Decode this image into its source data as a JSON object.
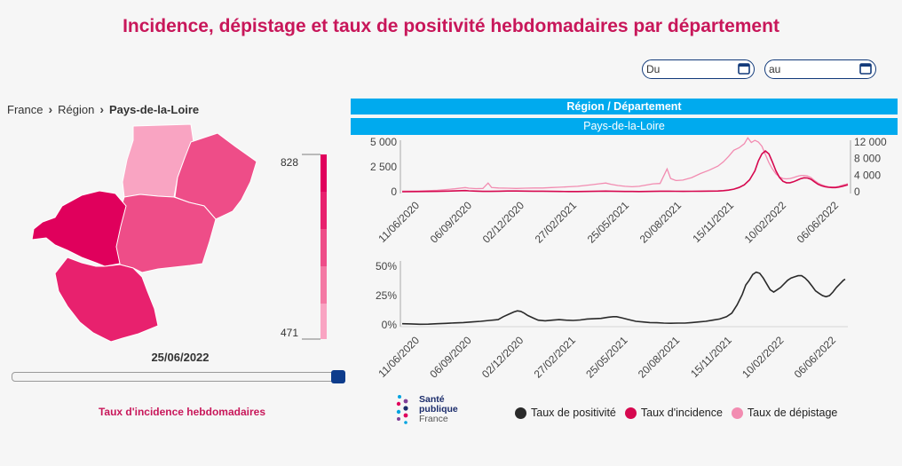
{
  "page": {
    "title": "Incidence, dépistage et taux de positivité hebdomadaires par département"
  },
  "filters": {
    "date_from_label": "Du",
    "date_to_label": "au"
  },
  "breadcrumb": {
    "items": [
      "France",
      "Région",
      "Pays-de-la-Loire"
    ]
  },
  "map": {
    "scale_max_label": "828",
    "scale_min_label": "471",
    "date_label": "25/06/2022",
    "caption": "Taux d'incidence hebdomadaires",
    "slider_position": 1.0,
    "scale_colors": [
      "#e0005c",
      "#e8216e",
      "#ee4d88",
      "#f479a4",
      "#f9a4c2"
    ],
    "department_colors": {
      "loire-atlantique": "#e0005c",
      "maine-et-loire": "#ee4d88",
      "mayenne": "#f9a4c2",
      "sarthe": "#ee4d88",
      "vendee": "#e8216e"
    }
  },
  "header": {
    "level_label": "Région / Département",
    "selected_area": "Pays-de-la-Loire"
  },
  "chart_data": [
    {
      "type": "line",
      "x_tick_labels": [
        "11/06/2020",
        "06/09/2020",
        "02/12/2020",
        "27/02/2021",
        "25/05/2021",
        "20/08/2021",
        "15/11/2021",
        "10/02/2022",
        "06/06/2022"
      ],
      "x_range": [
        "11/06/2020",
        "25/06/2022"
      ],
      "y_left_ticks": [
        "0",
        "2 500",
        "5 000"
      ],
      "y_left_range": [
        0,
        5000
      ],
      "y_right_ticks": [
        "0",
        "4 000",
        "8 000",
        "12 000"
      ],
      "y_right_range": [
        0,
        12000
      ],
      "series": [
        {
          "name": "Taux d'incidence",
          "axis": "left",
          "color": "#d6084f",
          "points": [
            [
              0,
              0
            ],
            [
              8,
              15
            ],
            [
              20,
              40
            ],
            [
              30,
              80
            ],
            [
              36,
              120
            ],
            [
              38,
              90
            ],
            [
              42,
              60
            ],
            [
              46,
              40
            ],
            [
              50,
              35
            ],
            [
              55,
              55
            ],
            [
              60,
              75
            ],
            [
              65,
              70
            ],
            [
              70,
              60
            ],
            [
              75,
              55
            ],
            [
              80,
              50
            ],
            [
              85,
              35
            ],
            [
              90,
              25
            ],
            [
              95,
              20
            ],
            [
              100,
              18
            ],
            [
              104,
              25
            ],
            [
              108,
              40
            ],
            [
              112,
              55
            ],
            [
              116,
              60
            ],
            [
              119,
              50
            ],
            [
              123,
              40
            ],
            [
              127,
              30
            ],
            [
              131,
              25
            ],
            [
              135,
              20
            ],
            [
              139,
              30
            ],
            [
              143,
              40
            ],
            [
              147,
              50
            ],
            [
              152,
              55
            ],
            [
              156,
              45
            ],
            [
              160,
              40
            ],
            [
              165,
              45
            ],
            [
              170,
              55
            ],
            [
              175,
              60
            ],
            [
              180,
              75
            ],
            [
              183,
              110
            ],
            [
              186,
              160
            ],
            [
              189,
              260
            ],
            [
              192,
              430
            ],
            [
              195,
              700
            ],
            [
              198,
              1200
            ],
            [
              201,
              2100
            ],
            [
              203,
              3100
            ],
            [
              205,
              3800
            ],
            [
              207,
              4100
            ],
            [
              209,
              3800
            ],
            [
              211,
              3000
            ],
            [
              213,
              2100
            ],
            [
              215,
              1450
            ],
            [
              217,
              1050
            ],
            [
              219,
              900
            ],
            [
              221,
              900
            ],
            [
              223,
              1000
            ],
            [
              225,
              1150
            ],
            [
              227,
              1300
            ],
            [
              229,
              1400
            ],
            [
              231,
              1380
            ],
            [
              233,
              1250
            ],
            [
              235,
              1000
            ],
            [
              237,
              750
            ],
            [
              239,
              600
            ],
            [
              241,
              500
            ],
            [
              243,
              450
            ],
            [
              245,
              420
            ],
            [
              247,
              420
            ],
            [
              249,
              470
            ],
            [
              251,
              550
            ],
            [
              253,
              650
            ],
            [
              254,
              700
            ]
          ]
        },
        {
          "name": "Taux de dépistage",
          "axis": "right",
          "color": "#f28cb1",
          "points": [
            [
              0,
              150
            ],
            [
              10,
              200
            ],
            [
              20,
              350
            ],
            [
              30,
              700
            ],
            [
              36,
              1000
            ],
            [
              38,
              850
            ],
            [
              42,
              750
            ],
            [
              46,
              800
            ],
            [
              49,
              2100
            ],
            [
              51,
              1000
            ],
            [
              55,
              900
            ],
            [
              60,
              850
            ],
            [
              65,
              800
            ],
            [
              70,
              850
            ],
            [
              75,
              900
            ],
            [
              80,
              900
            ],
            [
              85,
              1000
            ],
            [
              90,
              1100
            ],
            [
              95,
              1200
            ],
            [
              100,
              1300
            ],
            [
              104,
              1500
            ],
            [
              108,
              1700
            ],
            [
              112,
              1900
            ],
            [
              116,
              2100
            ],
            [
              119,
              1800
            ],
            [
              123,
              1500
            ],
            [
              127,
              1300
            ],
            [
              131,
              1200
            ],
            [
              135,
              1300
            ],
            [
              139,
              1600
            ],
            [
              143,
              1900
            ],
            [
              147,
              2000
            ],
            [
              151,
              5500
            ],
            [
              153,
              3200
            ],
            [
              156,
              2700
            ],
            [
              160,
              2800
            ],
            [
              165,
              3400
            ],
            [
              170,
              4400
            ],
            [
              175,
              5200
            ],
            [
              180,
              6200
            ],
            [
              183,
              7200
            ],
            [
              186,
              8500
            ],
            [
              189,
              10000
            ],
            [
              192,
              10600
            ],
            [
              195,
              11600
            ],
            [
              197,
              13000
            ],
            [
              199,
              11900
            ],
            [
              201,
              12400
            ],
            [
              203,
              12000
            ],
            [
              205,
              11000
            ],
            [
              207,
              9000
            ],
            [
              209,
              7000
            ],
            [
              211,
              5500
            ],
            [
              213,
              4300
            ],
            [
              215,
              3600
            ],
            [
              217,
              3200
            ],
            [
              219,
              3100
            ],
            [
              221,
              3200
            ],
            [
              223,
              3400
            ],
            [
              225,
              3700
            ],
            [
              227,
              3900
            ],
            [
              229,
              3950
            ],
            [
              231,
              3800
            ],
            [
              233,
              3400
            ],
            [
              235,
              2700
            ],
            [
              237,
              2100
            ],
            [
              239,
              1700
            ],
            [
              241,
              1400
            ],
            [
              243,
              1200
            ],
            [
              245,
              1150
            ],
            [
              247,
              1150
            ],
            [
              249,
              1300
            ],
            [
              251,
              1600
            ],
            [
              253,
              1800
            ],
            [
              254,
              1950
            ]
          ]
        }
      ]
    },
    {
      "type": "line",
      "x_tick_labels": [
        "11/06/2020",
        "06/09/2020",
        "02/12/2020",
        "27/02/2021",
        "25/05/2021",
        "20/08/2021",
        "15/11/2021",
        "10/02/2022",
        "06/06/2022"
      ],
      "x_range": [
        "11/06/2020",
        "25/06/2022"
      ],
      "y_ticks": [
        "0%",
        "25%",
        "50%"
      ],
      "y_range": [
        0,
        0.5
      ],
      "series": [
        {
          "name": "Taux de positivité",
          "color": "#2a2a2a",
          "points": [
            [
              0,
              0.01
            ],
            [
              5,
              0.008
            ],
            [
              10,
              0.005
            ],
            [
              15,
              0.006
            ],
            [
              20,
              0.01
            ],
            [
              25,
              0.013
            ],
            [
              30,
              0.017
            ],
            [
              35,
              0.02
            ],
            [
              40,
              0.025
            ],
            [
              45,
              0.03
            ],
            [
              50,
              0.038
            ],
            [
              55,
              0.045
            ],
            [
              58,
              0.07
            ],
            [
              61,
              0.09
            ],
            [
              64,
              0.11
            ],
            [
              66,
              0.12
            ],
            [
              68,
              0.115
            ],
            [
              70,
              0.1
            ],
            [
              72,
              0.08
            ],
            [
              75,
              0.06
            ],
            [
              78,
              0.04
            ],
            [
              82,
              0.035
            ],
            [
              86,
              0.04
            ],
            [
              90,
              0.045
            ],
            [
              94,
              0.04
            ],
            [
              98,
              0.038
            ],
            [
              102,
              0.042
            ],
            [
              106,
              0.05
            ],
            [
              110,
              0.052
            ],
            [
              114,
              0.055
            ],
            [
              118,
              0.065
            ],
            [
              121,
              0.07
            ],
            [
              123,
              0.07
            ],
            [
              126,
              0.06
            ],
            [
              130,
              0.045
            ],
            [
              134,
              0.03
            ],
            [
              138,
              0.025
            ],
            [
              142,
              0.02
            ],
            [
              146,
              0.018
            ],
            [
              150,
              0.015
            ],
            [
              154,
              0.014
            ],
            [
              158,
              0.015
            ],
            [
              162,
              0.015
            ],
            [
              166,
              0.02
            ],
            [
              170,
              0.025
            ],
            [
              174,
              0.03
            ],
            [
              178,
              0.04
            ],
            [
              182,
              0.05
            ],
            [
              186,
              0.07
            ],
            [
              189,
              0.1
            ],
            [
              192,
              0.17
            ],
            [
              195,
              0.26
            ],
            [
              197,
              0.34
            ],
            [
              199,
              0.38
            ],
            [
              201,
              0.43
            ],
            [
              203,
              0.45
            ],
            [
              205,
              0.44
            ],
            [
              207,
              0.4
            ],
            [
              209,
              0.35
            ],
            [
              211,
              0.3
            ],
            [
              213,
              0.28
            ],
            [
              215,
              0.3
            ],
            [
              217,
              0.32
            ],
            [
              219,
              0.35
            ],
            [
              221,
              0.38
            ],
            [
              223,
              0.4
            ],
            [
              225,
              0.41
            ],
            [
              227,
              0.42
            ],
            [
              229,
              0.42
            ],
            [
              231,
              0.4
            ],
            [
              233,
              0.37
            ],
            [
              235,
              0.33
            ],
            [
              237,
              0.29
            ],
            [
              239,
              0.27
            ],
            [
              241,
              0.25
            ],
            [
              243,
              0.24
            ],
            [
              245,
              0.25
            ],
            [
              247,
              0.28
            ],
            [
              249,
              0.32
            ],
            [
              251,
              0.35
            ],
            [
              253,
              0.38
            ],
            [
              254,
              0.39
            ]
          ]
        }
      ]
    }
  ],
  "legend": {
    "items": [
      {
        "label": "Taux de positivité",
        "color": "#2a2a2a"
      },
      {
        "label": "Taux d'incidence",
        "color": "#d6084f"
      },
      {
        "label": "Taux de dépistage",
        "color": "#f28cb1"
      }
    ]
  },
  "logo": {
    "line1": "Santé",
    "line2": "publique",
    "line3": "France"
  }
}
